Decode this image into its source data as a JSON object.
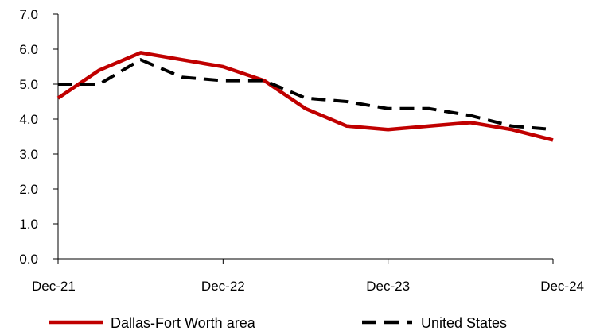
{
  "chart_data": {
    "type": "line",
    "title": "",
    "xlabel": "",
    "ylabel": "",
    "x": [
      "Dec-21",
      "Mar-22",
      "Jun-22",
      "Sep-22",
      "Dec-22",
      "Mar-23",
      "Jun-23",
      "Sep-23",
      "Dec-23",
      "Mar-24",
      "Jun-24",
      "Sep-24",
      "Dec-24"
    ],
    "x_tick_labels": [
      "Dec-21",
      "Dec-22",
      "Dec-23",
      "Dec-24"
    ],
    "y_tick_labels": [
      "0.0",
      "1.0",
      "2.0",
      "3.0",
      "4.0",
      "5.0",
      "6.0",
      "7.0"
    ],
    "ylim": [
      0,
      7
    ],
    "grid": false,
    "legend_position": "bottom",
    "series": [
      {
        "name": "Dallas-Fort Worth area",
        "color": "#C00000",
        "style": "solid",
        "values": [
          4.6,
          5.4,
          5.9,
          5.7,
          5.5,
          5.1,
          4.3,
          3.8,
          3.7,
          3.8,
          3.9,
          3.7,
          3.4
        ]
      },
      {
        "name": "United States",
        "color": "#000000",
        "style": "dashed",
        "values": [
          5.0,
          5.0,
          5.7,
          5.2,
          5.1,
          5.1,
          4.6,
          4.5,
          4.3,
          4.3,
          4.1,
          3.8,
          3.7
        ]
      }
    ]
  }
}
